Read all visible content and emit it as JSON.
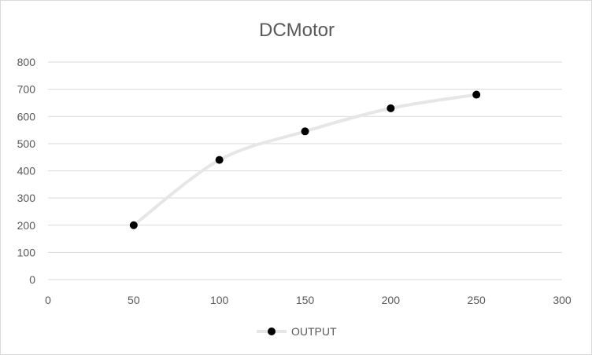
{
  "chart_data": {
    "type": "scatter",
    "title": "DCMotor",
    "xlabel": "",
    "ylabel": "",
    "xlim": [
      0,
      300
    ],
    "ylim": [
      0,
      800
    ],
    "x_ticks": [
      0,
      50,
      100,
      150,
      200,
      250,
      300
    ],
    "y_ticks": [
      0,
      100,
      200,
      300,
      400,
      500,
      600,
      700,
      800
    ],
    "grid": "horizontal",
    "legend_position": "bottom",
    "series": [
      {
        "name": "OUTPUT",
        "line_color": "#e6e6e6",
        "marker_color": "#000000",
        "points": [
          {
            "x": 50,
            "y": 200
          },
          {
            "x": 100,
            "y": 440
          },
          {
            "x": 150,
            "y": 545
          },
          {
            "x": 200,
            "y": 630
          },
          {
            "x": 250,
            "y": 680
          }
        ]
      }
    ]
  }
}
